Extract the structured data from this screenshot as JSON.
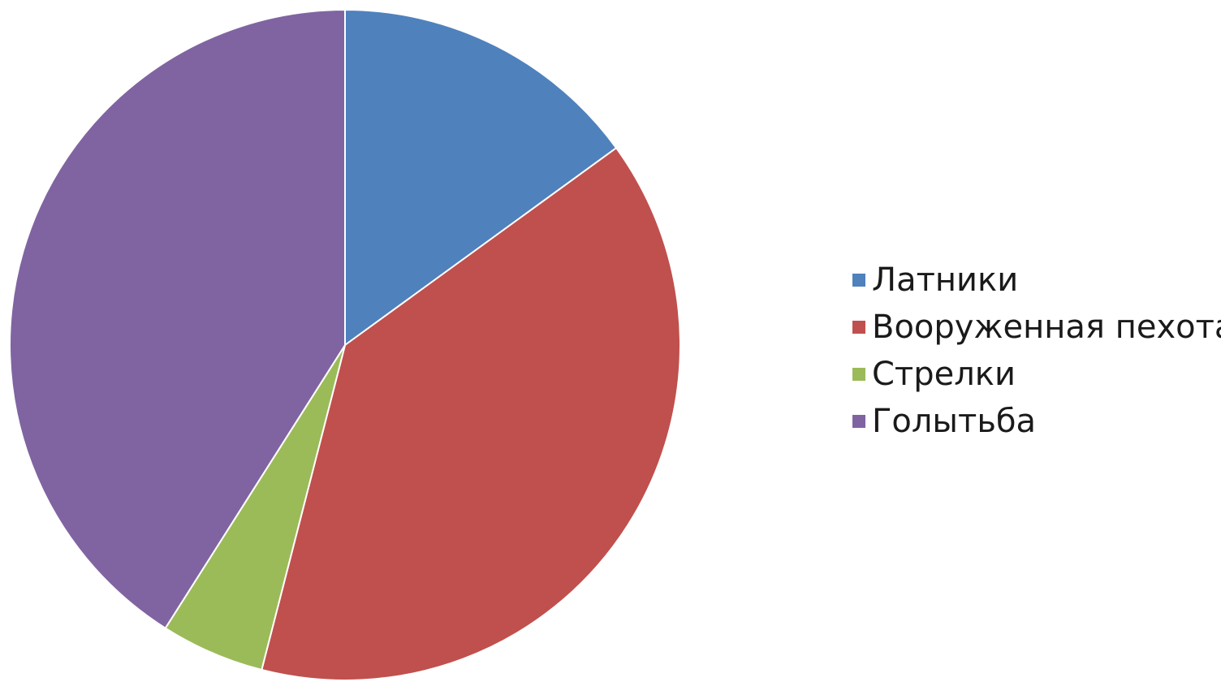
{
  "chart_data": {
    "type": "pie",
    "title": "",
    "legend_position": "right",
    "categories": [
      "Латники",
      "Вооруженная пехота",
      "Стрелки",
      "Голытьба"
    ],
    "values": [
      15,
      39,
      5,
      41
    ],
    "colors": [
      "#4F81BD",
      "#C0504D",
      "#9BBB59",
      "#8064A2"
    ],
    "start_angle_deg": 0,
    "direction": "clockwise"
  }
}
